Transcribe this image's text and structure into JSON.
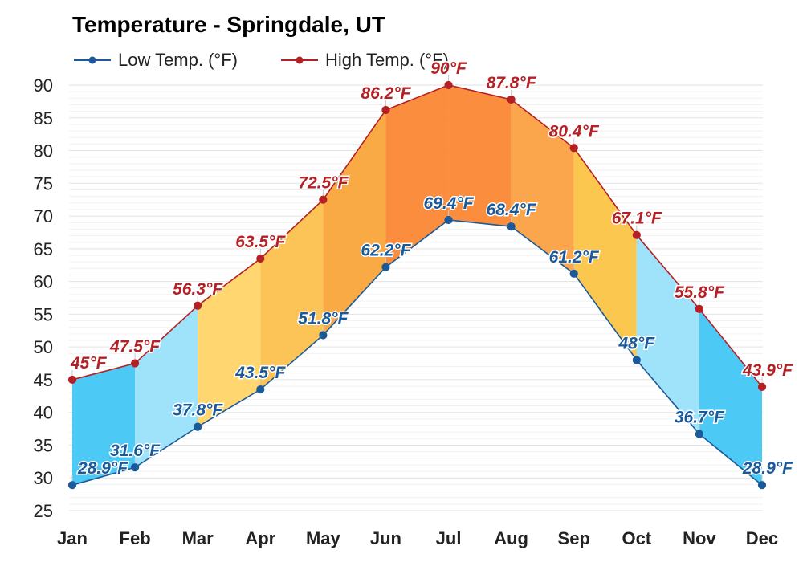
{
  "chart_data": {
    "type": "line",
    "title": "Temperature - Springdale, UT",
    "categories": [
      "Jan",
      "Feb",
      "Mar",
      "Apr",
      "May",
      "Jun",
      "Jul",
      "Aug",
      "Sep",
      "Oct",
      "Nov",
      "Dec"
    ],
    "series": [
      {
        "name": "Low Temp. (°F)",
        "color": "#1a5a9a",
        "values": [
          28.9,
          31.6,
          37.8,
          43.5,
          51.8,
          62.2,
          69.4,
          68.4,
          61.2,
          48,
          36.7,
          28.9
        ],
        "labels": [
          "28.9°F",
          "31.6°F",
          "37.8°F",
          "43.5°F",
          "51.8°F",
          "62.2°F",
          "69.4°F",
          "68.4°F",
          "61.2°F",
          "48°F",
          "36.7°F",
          "28.9°F"
        ]
      },
      {
        "name": "High Temp. (°F)",
        "color": "#b52025",
        "values": [
          45,
          47.5,
          56.3,
          63.5,
          72.5,
          86.2,
          90,
          87.8,
          80.4,
          67.1,
          55.8,
          43.9
        ],
        "labels": [
          "45°F",
          "47.5°F",
          "56.3°F",
          "63.5°F",
          "72.5°F",
          "86.2°F",
          "90°F",
          "87.8°F",
          "80.4°F",
          "67.1°F",
          "55.8°F",
          "43.9°F"
        ]
      }
    ],
    "yticks": [
      "90",
      "85",
      "80",
      "75",
      "70",
      "65",
      "60",
      "55",
      "50",
      "45",
      "40",
      "35",
      "30",
      "25"
    ],
    "ylim": [
      25,
      90
    ],
    "grid": true,
    "legend_position": "top-left",
    "band_colors": [
      "#4ccaf5",
      "#9fe3fb",
      "#ffd670",
      "#fcc357",
      "#f9aa45",
      "#fb8e3e",
      "#fb8e3e",
      "#fba64c",
      "#fcc74f",
      "#9fe3fb",
      "#4ccaf5",
      "#4ccaf5"
    ]
  }
}
